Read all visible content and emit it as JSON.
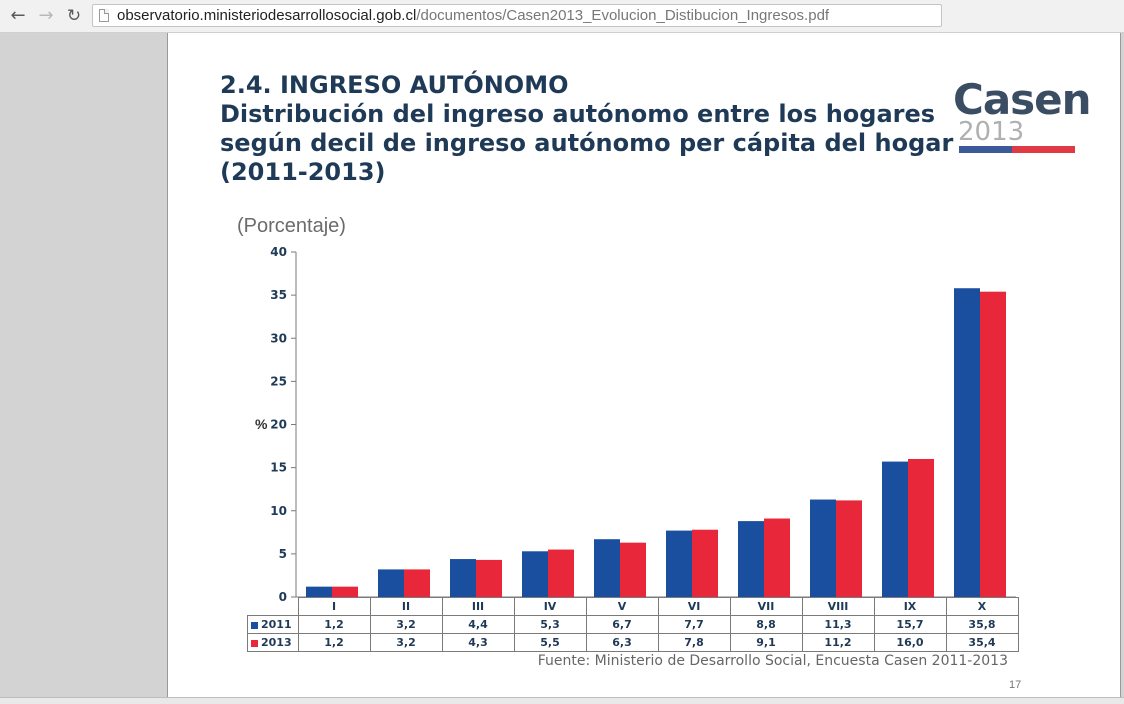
{
  "browser": {
    "back_icon": "arrow-left-icon",
    "forward_icon": "arrow-right-icon",
    "reload_icon": "reload-icon",
    "url_host": "observatorio.ministeriodesarrollosocial.gob.cl",
    "url_path": "/documentos/Casen2013_Evolucion_Distibucion_Ingresos.pdf"
  },
  "slide": {
    "section_title": "2.4. INGRESO AUTÓNOMO",
    "title_line1": "Distribución del ingreso autónomo entre los hogares",
    "title_line2": "según decil de ingreso autónomo per cápita del hogar",
    "title_line3": "(2011-2013)",
    "logo_word": "Casen",
    "logo_year": "2013",
    "unit_label": "(Porcentaje)",
    "source": "Fuente: Ministerio de Desarrollo Social, Encuesta Casen 2011-2013",
    "page_number": "17"
  },
  "chart_data": {
    "type": "bar",
    "categories": [
      "I",
      "II",
      "III",
      "IV",
      "V",
      "VI",
      "VII",
      "VIII",
      "IX",
      "X"
    ],
    "series": [
      {
        "name": "2011",
        "color": "#1a4fa0",
        "values": [
          1.2,
          3.2,
          4.4,
          5.3,
          6.7,
          7.7,
          8.8,
          11.3,
          15.7,
          35.8
        ],
        "labels": [
          "1,2",
          "3,2",
          "4,4",
          "5,3",
          "6,7",
          "7,7",
          "8,8",
          "11,3",
          "15,7",
          "35,8"
        ]
      },
      {
        "name": "2013",
        "color": "#e8283a",
        "values": [
          1.2,
          3.2,
          4.3,
          5.5,
          6.3,
          7.8,
          9.1,
          11.2,
          16.0,
          35.4
        ],
        "labels": [
          "1,2",
          "3,2",
          "4,3",
          "5,5",
          "6,3",
          "7,8",
          "9,1",
          "11,2",
          "16,0",
          "35,4"
        ]
      }
    ],
    "ylabel": "%",
    "ylim": [
      0,
      40
    ],
    "yticks": [
      0,
      5,
      10,
      15,
      20,
      25,
      30,
      35,
      40
    ],
    "grid": false,
    "legend": "data-table"
  }
}
